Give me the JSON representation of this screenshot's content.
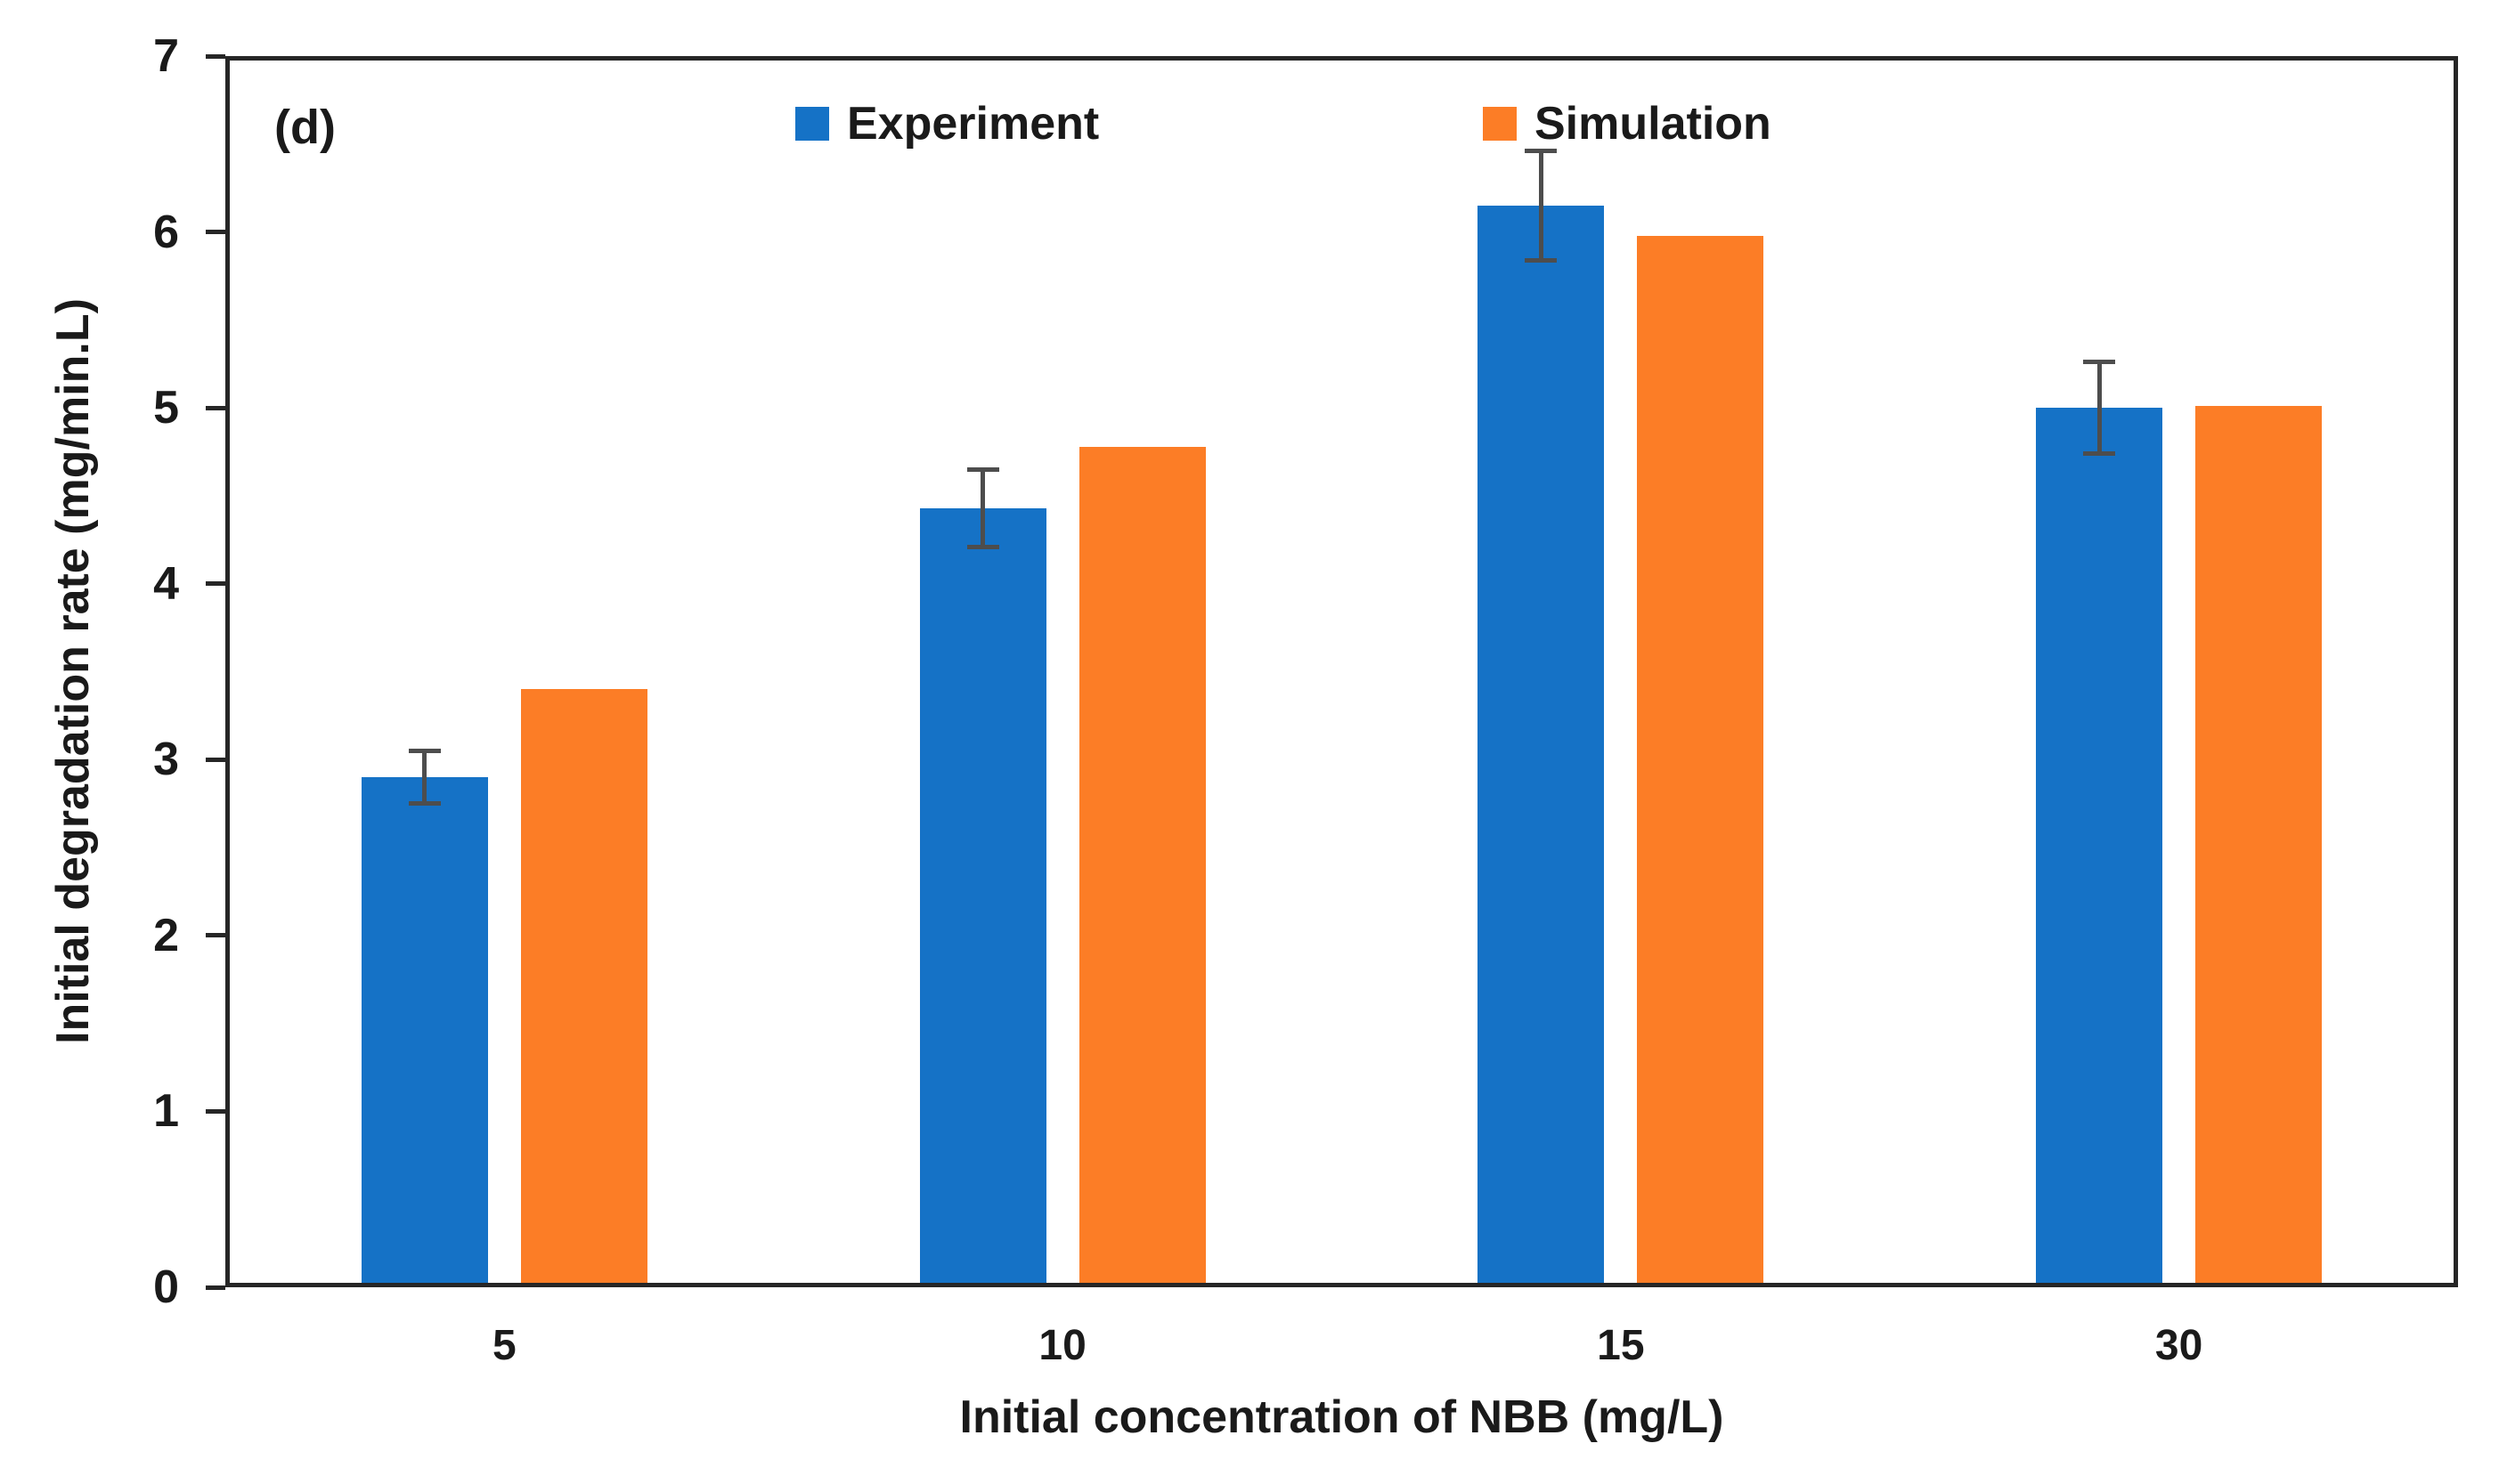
{
  "chart_data": {
    "type": "bar",
    "panel_label": "(d)",
    "categories": [
      "5",
      "10",
      "15",
      "30"
    ],
    "series": [
      {
        "name": "Experiment",
        "color": "#1572C6",
        "values": [
          2.9,
          4.43,
          6.15,
          5.0
        ],
        "error_bars": [
          0.15,
          0.22,
          0.31,
          0.26
        ]
      },
      {
        "name": "Simulation",
        "color": "#FC7D26",
        "values": [
          3.4,
          4.78,
          5.98,
          5.01
        ],
        "error_bars": null
      }
    ],
    "xlabel": "Initial concentration of NBB (mg/L)",
    "ylabel": "Initial degradation rate (mg/min.L)",
    "ylim": [
      0,
      7
    ],
    "y_ticks": [
      0,
      1,
      2,
      3,
      4,
      5,
      6,
      7
    ],
    "grid": false,
    "legend_position": "top-inside",
    "axis_color": "#262626",
    "error_bar_color": "#4d4d4d",
    "background_color": "#ffffff"
  }
}
